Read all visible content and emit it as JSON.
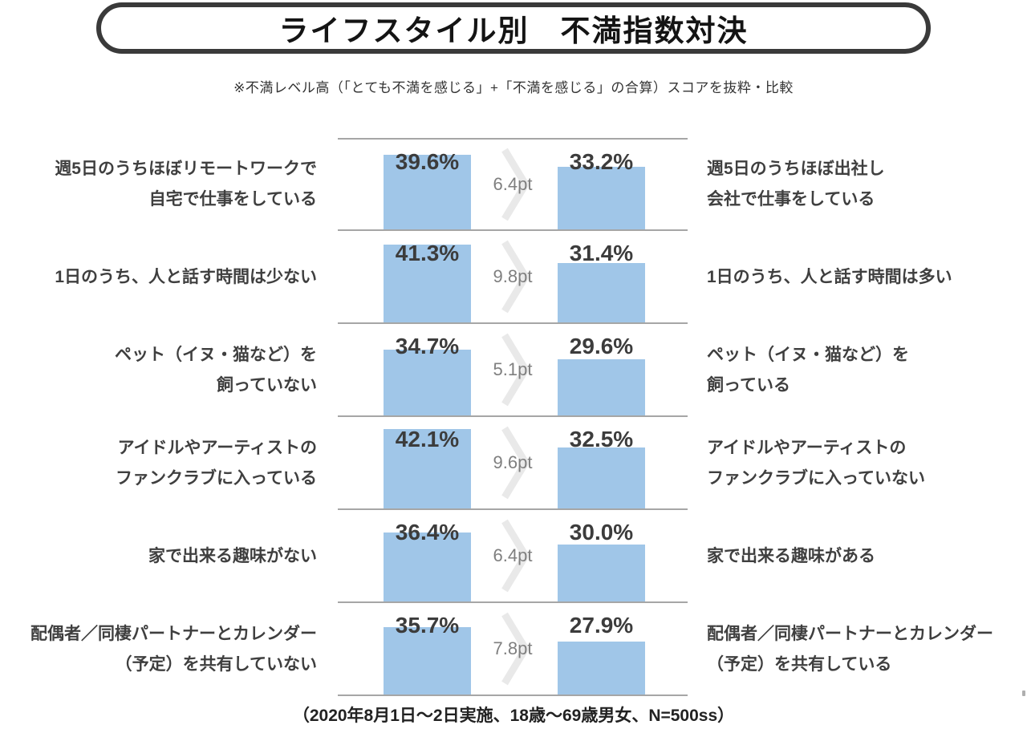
{
  "title": "ライフスタイル別　不満指数対決",
  "subtitle": "※不満レベル高（「とても不満を感じる」+「不満を感じる」の合算）スコアを抜粋・比較",
  "footer": "（2020年8月1日～2日実施、18歳～69歳男女、N=500ss）",
  "colors": {
    "bar": "#a0c6e8",
    "separator": "#a6a6a6",
    "chevron": "#e9e9e9",
    "diff_text": "#7f7f7f",
    "value_text": "#3c3c3c",
    "label_text": "#3f3f3f",
    "title_border": "#3a3a3a"
  },
  "chart_data": {
    "type": "bar",
    "unit": "%",
    "legend": "none",
    "grid": "off",
    "layout": "paired horizontal comparison, 6 rows, higher score on left, gray chevron with point difference between bars",
    "value_range_drawn": [
      0,
      49
    ],
    "rows": [
      {
        "left_label_lines": [
          "週5日のうちほぼリモートワークで",
          "自宅で仕事をしている"
        ],
        "left_value": 39.6,
        "left_value_label": "39.6%",
        "diff": 6.4,
        "diff_label": "6.4pt",
        "right_value": 33.2,
        "right_value_label": "33.2%",
        "right_label_lines": [
          "週5日のうちほぼ出社し",
          "会社で仕事をしている"
        ]
      },
      {
        "left_label_lines": [
          "1日のうち、人と話す時間は少ない"
        ],
        "left_value": 41.3,
        "left_value_label": "41.3%",
        "diff": 9.8,
        "diff_label": "9.8pt",
        "right_value": 31.4,
        "right_value_label": "31.4%",
        "right_label_lines": [
          "1日のうち、人と話す時間は多い"
        ]
      },
      {
        "left_label_lines": [
          "ペット（イヌ・猫など）を",
          "飼っていない"
        ],
        "left_value": 34.7,
        "left_value_label": "34.7%",
        "diff": 5.1,
        "diff_label": "5.1pt",
        "right_value": 29.6,
        "right_value_label": "29.6%",
        "right_label_lines": [
          "ペット（イヌ・猫など）を",
          "飼っている"
        ]
      },
      {
        "left_label_lines": [
          "アイドルやアーティストの",
          "ファンクラブに入っている"
        ],
        "left_value": 42.1,
        "left_value_label": "42.1%",
        "diff": 9.6,
        "diff_label": "9.6pt",
        "right_value": 32.5,
        "right_value_label": "32.5%",
        "right_label_lines": [
          "アイドルやアーティストの",
          "ファンクラブに入っていない"
        ]
      },
      {
        "left_label_lines": [
          "家で出来る趣味がない"
        ],
        "left_value": 36.4,
        "left_value_label": "36.4%",
        "diff": 6.4,
        "diff_label": "6.4pt",
        "right_value": 30.0,
        "right_value_label": "30.0%",
        "right_label_lines": [
          "家で出来る趣味がある"
        ]
      },
      {
        "left_label_lines": [
          "配偶者／同棲パートナーとカレンダー",
          "（予定）を共有していない"
        ],
        "left_value": 35.7,
        "left_value_label": "35.7%",
        "diff": 7.8,
        "diff_label": "7.8pt",
        "right_value": 27.9,
        "right_value_label": "27.9%",
        "right_label_lines": [
          "配偶者／同棲パートナーとカレンダー",
          "（予定）を共有している"
        ]
      }
    ]
  }
}
